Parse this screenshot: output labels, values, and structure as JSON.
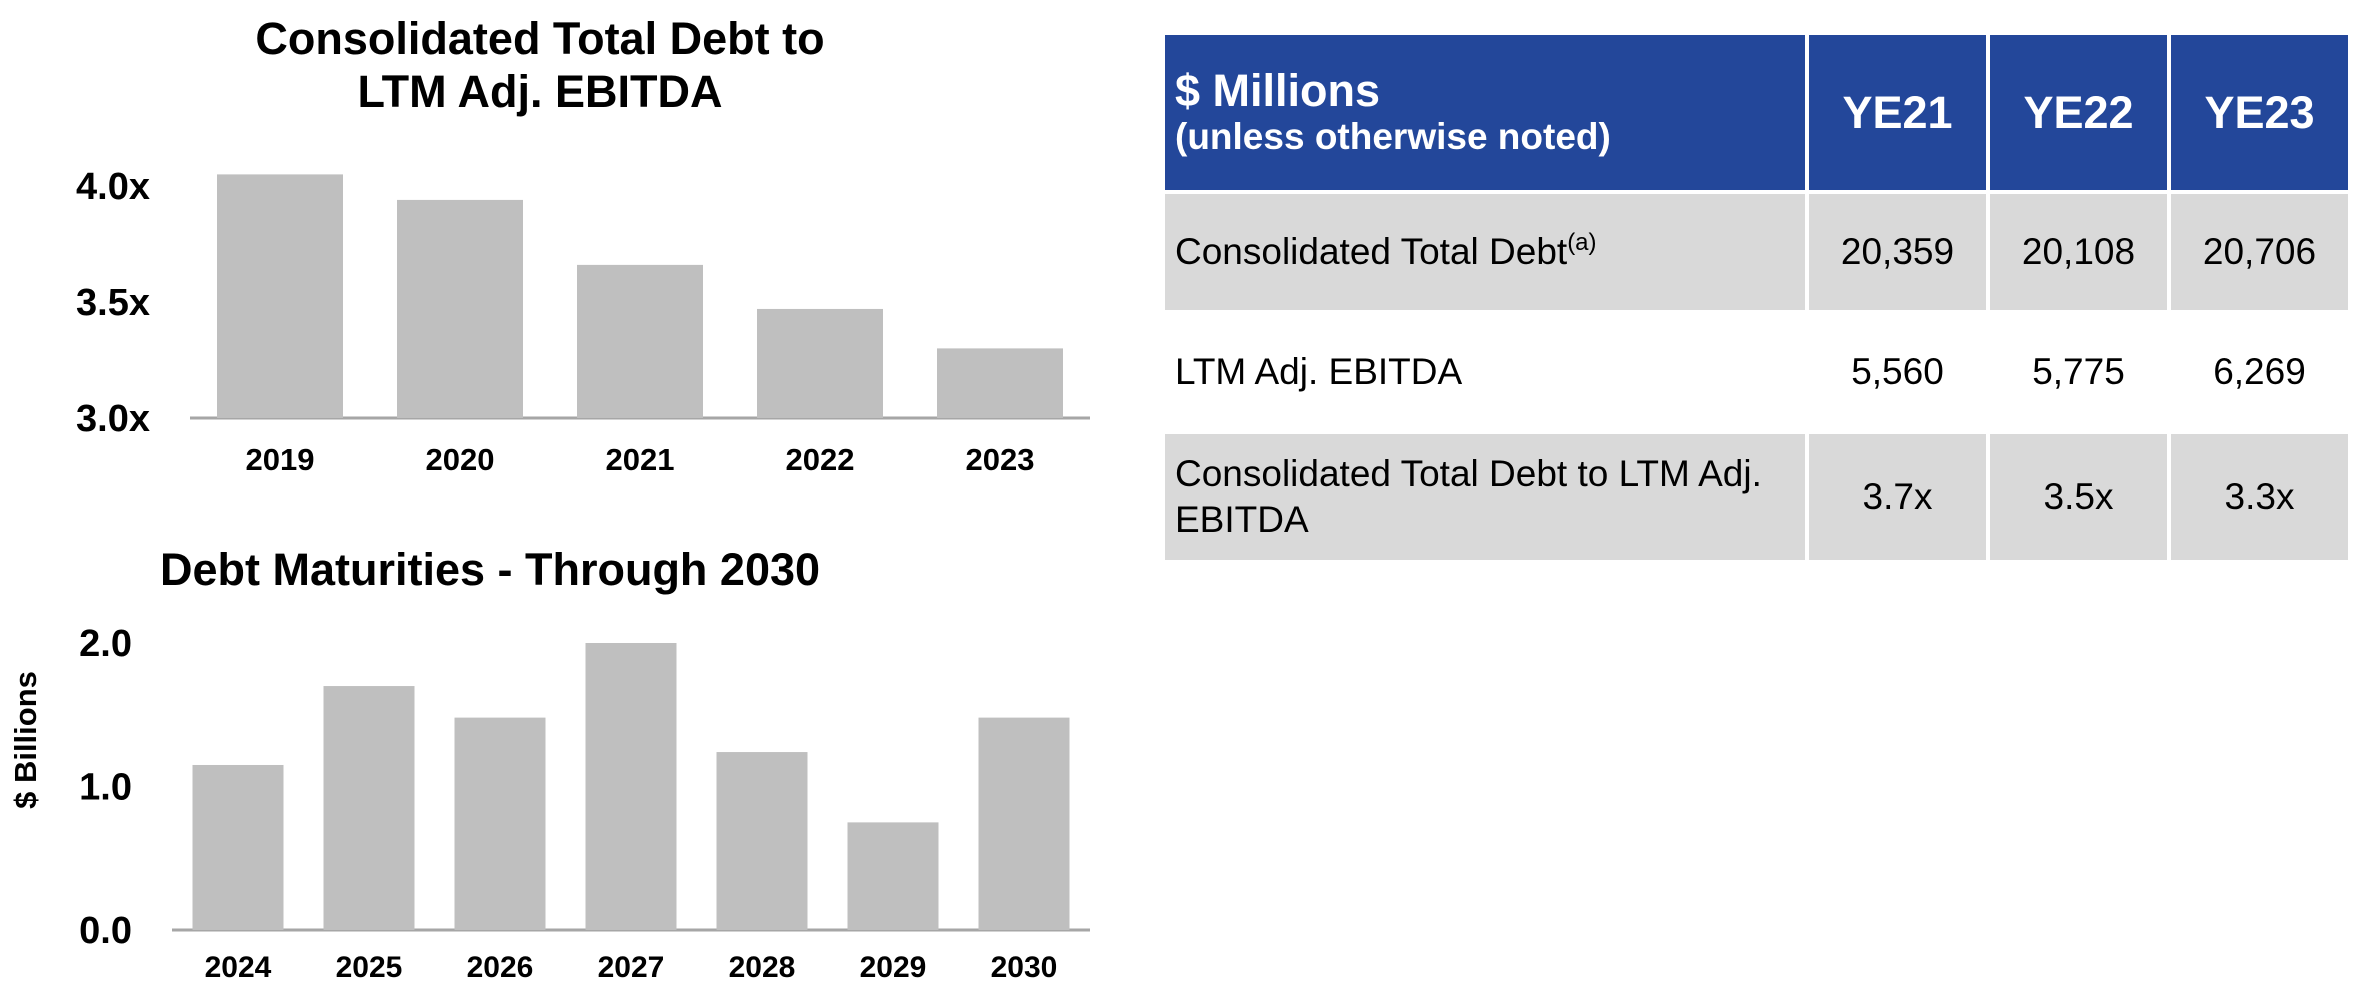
{
  "chart_data": [
    {
      "type": "bar",
      "title": "Consolidated Total Debt to LTM Adj. EBITDA",
      "title_lines": [
        "Consolidated Total Debt to",
        "LTM Adj. EBITDA"
      ],
      "categories": [
        "2019",
        "2020",
        "2021",
        "2022",
        "2023"
      ],
      "values": [
        4.05,
        3.94,
        3.66,
        3.47,
        3.3
      ],
      "ylim": [
        3.0,
        4.0
      ],
      "yticks": [
        "3.0x",
        "3.5x",
        "4.0x"
      ],
      "ytick_values": [
        3.0,
        3.5,
        4.0
      ],
      "xlabel": "",
      "ylabel": "",
      "grid": false,
      "bar_color": "#bfbfbf"
    },
    {
      "type": "bar",
      "title": "Debt Maturities - Through 2030",
      "categories": [
        "2024",
        "2025",
        "2026",
        "2027",
        "2028",
        "2029",
        "2030"
      ],
      "values": [
        1.15,
        1.7,
        1.48,
        2.0,
        1.24,
        0.75,
        1.48
      ],
      "ylim": [
        0.0,
        2.0
      ],
      "yticks": [
        "0.0",
        "1.0",
        "2.0"
      ],
      "ytick_values": [
        0.0,
        1.0,
        2.0
      ],
      "xlabel": "",
      "ylabel": "$ Billions",
      "grid": false,
      "bar_color": "#bfbfbf"
    }
  ],
  "table": {
    "header": {
      "line1": "$ Millions",
      "line2": "(unless otherwise noted)",
      "years": [
        "YE21",
        "YE22",
        "YE23"
      ]
    },
    "rows": [
      {
        "label": "Consolidated Total Debt",
        "footnote": "(a)",
        "values": [
          "20,359",
          "20,108",
          "20,706"
        ],
        "shaded": true
      },
      {
        "label": "LTM Adj. EBITDA",
        "footnote": "",
        "values": [
          "5,560",
          "5,775",
          "6,269"
        ],
        "shaded": false
      },
      {
        "label": "Consolidated Total Debt to LTM Adj. EBITDA",
        "footnote": "",
        "values": [
          "3.7x",
          "3.5x",
          "3.3x"
        ],
        "shaded": true
      }
    ],
    "header_color": "#23479a",
    "shade_color": "#d9d9d9"
  }
}
